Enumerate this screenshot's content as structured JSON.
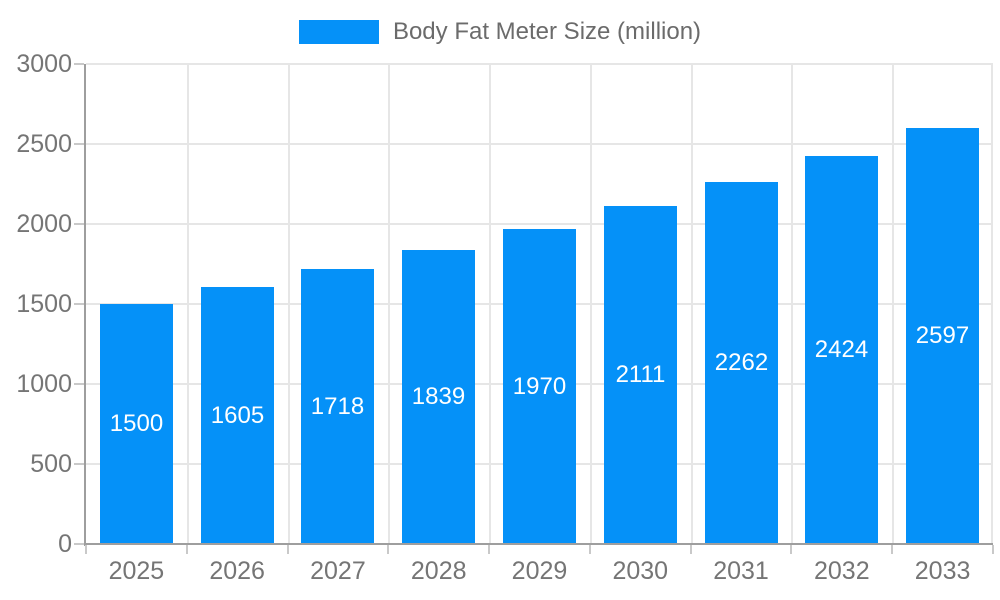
{
  "chart_data": {
    "type": "bar",
    "title": "Body Fat Meter Size (million)",
    "categories": [
      "2025",
      "2026",
      "2027",
      "2028",
      "2029",
      "2030",
      "2031",
      "2032",
      "2033"
    ],
    "values": [
      1500,
      1605,
      1718,
      1839,
      1970,
      2111,
      2262,
      2424,
      2597
    ],
    "xlabel": "",
    "ylabel": "",
    "ylim": [
      0,
      3000
    ],
    "yticks": [
      0,
      500,
      1000,
      1500,
      2000,
      2500,
      3000
    ],
    "grid": true,
    "legend_position": "top-center",
    "value_labels": "inside-center",
    "bar_color": "#0591F8",
    "value_label_color": "#ffffff",
    "axis_line_color": "#9e9e9e",
    "grid_color": "#e6e6e6",
    "tick_mark_color": "#c9c9c9",
    "tick_text_color": "#757575",
    "legend_text_color": "#6b6b6b",
    "background_color": "#ffffff"
  }
}
